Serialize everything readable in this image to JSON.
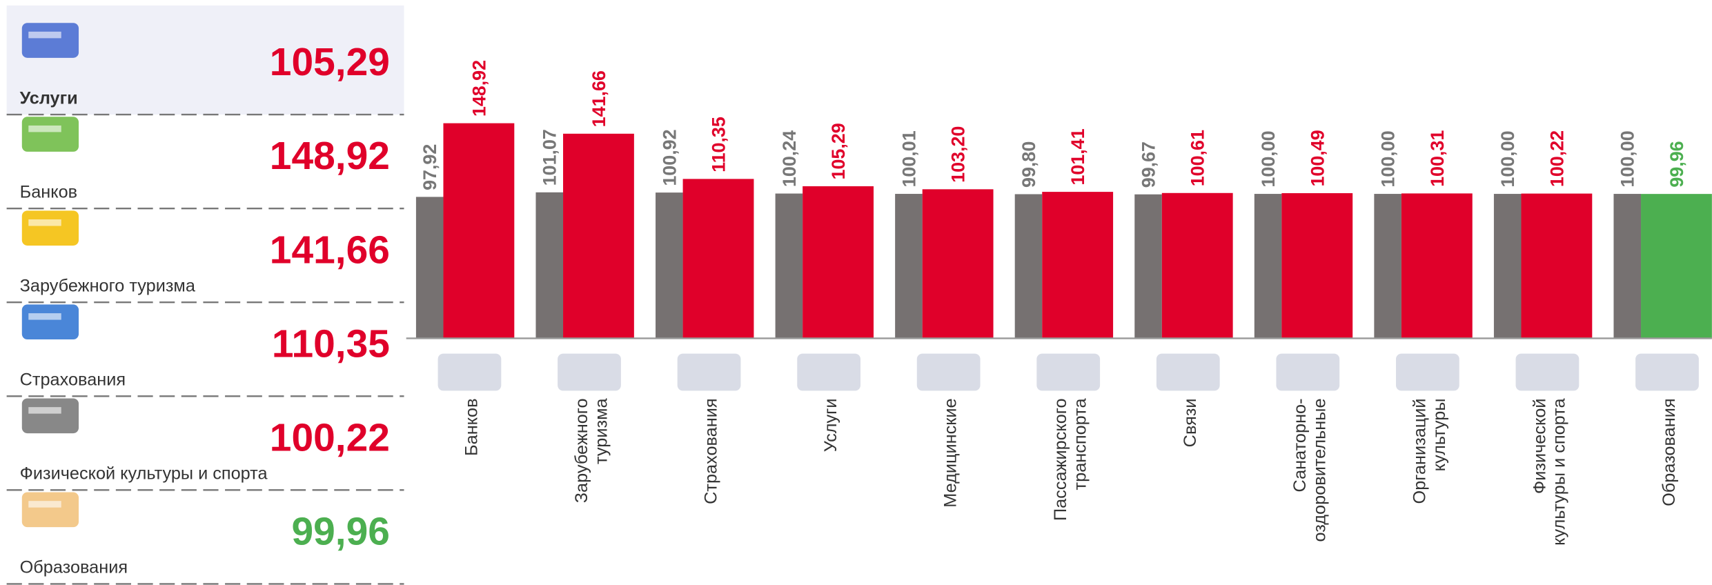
{
  "panel": {
    "rows": [
      {
        "label": "Услуги",
        "value": "105,29",
        "color": "#e0002a"
      },
      {
        "label": "Банков",
        "value": "148,92",
        "color": "#e0002a"
      },
      {
        "label": "Зарубежного туризма",
        "value": "141,66",
        "color": "#e0002a"
      },
      {
        "label": "Страхования",
        "value": "110,35",
        "color": "#e0002a"
      },
      {
        "label": "Физической культуры и спорта",
        "value": "100,22",
        "color": "#e0002a"
      },
      {
        "label": "Образования",
        "value": "99,96",
        "color": "#4caf50"
      }
    ]
  },
  "chart_data": {
    "type": "bar",
    "categories": [
      "Банков",
      "Зарубежного\nтуризма",
      "Страхования",
      "Услуги",
      "Медицинские",
      "Пассажирского\nтранспорта",
      "Связи",
      "Санаторно-\nоздоровительные",
      "Организаций\nкультуры",
      "Физической\nкультуры и спорта",
      "Образования"
    ],
    "series": [
      {
        "color": "#767171",
        "values": [
          97.92,
          101.07,
          100.92,
          100.24,
          100.01,
          99.8,
          99.67,
          100.0,
          100.0,
          100.0,
          100.0
        ],
        "value_labels": [
          "97,92",
          "101,07",
          "100,92",
          "100,24",
          "100,01",
          "99,80",
          "99,67",
          "100,00",
          "100,00",
          "100,00",
          "100,00"
        ]
      },
      {
        "color": "#e0002a",
        "colors": [
          "#e0002a",
          "#e0002a",
          "#e0002a",
          "#e0002a",
          "#e0002a",
          "#e0002a",
          "#e0002a",
          "#e0002a",
          "#e0002a",
          "#e0002a",
          "#4caf50"
        ],
        "values": [
          148.92,
          141.66,
          110.35,
          105.29,
          103.2,
          101.41,
          100.61,
          100.49,
          100.31,
          100.22,
          99.96
        ],
        "value_labels": [
          "148,92",
          "141,66",
          "110,35",
          "105,29",
          "103,20",
          "101,41",
          "100,61",
          "100,49",
          "100,31",
          "100,22",
          "99,96"
        ]
      }
    ],
    "ylim": [
      0,
      170
    ]
  }
}
